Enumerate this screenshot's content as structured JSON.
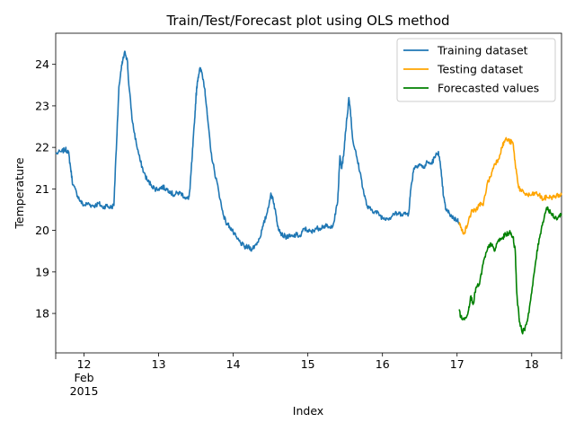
{
  "chart_data": {
    "type": "line",
    "title": "Train/Test/Forecast plot using OLS method",
    "xlabel": "Index",
    "ylabel": "Temperature",
    "x_unit": "day of Feb 2015 (fractional)",
    "xlim": [
      11.62,
      18.4
    ],
    "ylim": [
      17.05,
      24.75
    ],
    "x_ticks": [
      {
        "value": 12,
        "lines": [
          "12",
          "Feb",
          "2015"
        ]
      },
      {
        "value": 13,
        "lines": [
          "13"
        ]
      },
      {
        "value": 14,
        "lines": [
          "14"
        ]
      },
      {
        "value": 15,
        "lines": [
          "15"
        ]
      },
      {
        "value": 16,
        "lines": [
          "16"
        ]
      },
      {
        "value": 17,
        "lines": [
          "17"
        ]
      },
      {
        "value": 18,
        "lines": [
          "18"
        ]
      }
    ],
    "y_ticks": [
      18,
      19,
      20,
      21,
      22,
      23,
      24
    ],
    "grid": false,
    "legend_position": "top-right",
    "series": [
      {
        "name": "Training dataset",
        "color": "#1f77b4",
        "points": [
          [
            11.62,
            21.85
          ],
          [
            11.7,
            21.9
          ],
          [
            11.75,
            21.95
          ],
          [
            11.79,
            21.9
          ],
          [
            11.82,
            21.5
          ],
          [
            11.85,
            21.1
          ],
          [
            11.9,
            20.9
          ],
          [
            11.95,
            20.7
          ],
          [
            12.0,
            20.6
          ],
          [
            12.05,
            20.65
          ],
          [
            12.1,
            20.6
          ],
          [
            12.15,
            20.6
          ],
          [
            12.2,
            20.65
          ],
          [
            12.25,
            20.55
          ],
          [
            12.3,
            20.6
          ],
          [
            12.35,
            20.55
          ],
          [
            12.4,
            20.6
          ],
          [
            12.42,
            21.5
          ],
          [
            12.45,
            22.7
          ],
          [
            12.47,
            23.5
          ],
          [
            12.5,
            23.9
          ],
          [
            12.52,
            24.1
          ],
          [
            12.55,
            24.3
          ],
          [
            12.58,
            24.1
          ],
          [
            12.6,
            23.5
          ],
          [
            12.65,
            22.6
          ],
          [
            12.7,
            22.1
          ],
          [
            12.75,
            21.7
          ],
          [
            12.8,
            21.4
          ],
          [
            12.85,
            21.2
          ],
          [
            12.9,
            21.1
          ],
          [
            12.95,
            21.0
          ],
          [
            13.0,
            21.0
          ],
          [
            13.05,
            21.05
          ],
          [
            13.1,
            21.0
          ],
          [
            13.15,
            20.95
          ],
          [
            13.2,
            20.85
          ],
          [
            13.25,
            20.9
          ],
          [
            13.3,
            20.9
          ],
          [
            13.35,
            20.8
          ],
          [
            13.4,
            20.75
          ],
          [
            13.42,
            21.0
          ],
          [
            13.45,
            21.8
          ],
          [
            13.48,
            22.6
          ],
          [
            13.5,
            23.2
          ],
          [
            13.52,
            23.6
          ],
          [
            13.55,
            23.9
          ],
          [
            13.58,
            23.8
          ],
          [
            13.62,
            23.4
          ],
          [
            13.65,
            22.8
          ],
          [
            13.7,
            21.9
          ],
          [
            13.75,
            21.4
          ],
          [
            13.8,
            21.0
          ],
          [
            13.85,
            20.5
          ],
          [
            13.9,
            20.2
          ],
          [
            13.95,
            20.1
          ],
          [
            14.0,
            19.95
          ],
          [
            14.05,
            19.8
          ],
          [
            14.1,
            19.7
          ],
          [
            14.15,
            19.6
          ],
          [
            14.2,
            19.6
          ],
          [
            14.25,
            19.55
          ],
          [
            14.3,
            19.65
          ],
          [
            14.35,
            19.8
          ],
          [
            14.4,
            20.1
          ],
          [
            14.45,
            20.4
          ],
          [
            14.5,
            20.85
          ],
          [
            14.53,
            20.8
          ],
          [
            14.57,
            20.4
          ],
          [
            14.6,
            20.1
          ],
          [
            14.65,
            19.9
          ],
          [
            14.7,
            19.85
          ],
          [
            14.75,
            19.85
          ],
          [
            14.8,
            19.85
          ],
          [
            14.85,
            19.9
          ],
          [
            14.9,
            19.85
          ],
          [
            14.95,
            20.05
          ],
          [
            15.0,
            20.0
          ],
          [
            15.05,
            19.95
          ],
          [
            15.1,
            20.05
          ],
          [
            15.15,
            20.05
          ],
          [
            15.2,
            20.1
          ],
          [
            15.25,
            20.1
          ],
          [
            15.3,
            20.05
          ],
          [
            15.35,
            20.2
          ],
          [
            15.4,
            20.7
          ],
          [
            15.43,
            21.8
          ],
          [
            15.45,
            21.5
          ],
          [
            15.48,
            21.8
          ],
          [
            15.5,
            22.3
          ],
          [
            15.53,
            22.8
          ],
          [
            15.55,
            23.2
          ],
          [
            15.57,
            22.9
          ],
          [
            15.6,
            22.2
          ],
          [
            15.65,
            21.8
          ],
          [
            15.7,
            21.4
          ],
          [
            15.75,
            20.9
          ],
          [
            15.8,
            20.55
          ],
          [
            15.85,
            20.5
          ],
          [
            15.9,
            20.45
          ],
          [
            15.95,
            20.4
          ],
          [
            16.0,
            20.3
          ],
          [
            16.05,
            20.3
          ],
          [
            16.1,
            20.3
          ],
          [
            16.15,
            20.4
          ],
          [
            16.2,
            20.4
          ],
          [
            16.25,
            20.4
          ],
          [
            16.3,
            20.4
          ],
          [
            16.35,
            20.4
          ],
          [
            16.38,
            21.0
          ],
          [
            16.42,
            21.5
          ],
          [
            16.45,
            21.55
          ],
          [
            16.5,
            21.6
          ],
          [
            16.55,
            21.5
          ],
          [
            16.6,
            21.65
          ],
          [
            16.65,
            21.6
          ],
          [
            16.7,
            21.75
          ],
          [
            16.75,
            21.9
          ],
          [
            16.78,
            21.5
          ],
          [
            16.82,
            20.8
          ],
          [
            16.85,
            20.5
          ],
          [
            16.9,
            20.4
          ],
          [
            16.95,
            20.3
          ],
          [
            17.0,
            20.25
          ],
          [
            17.03,
            20.2
          ]
        ]
      },
      {
        "name": "Testing dataset",
        "color": "#ffa500",
        "points": [
          [
            17.03,
            20.2
          ],
          [
            17.06,
            20.0
          ],
          [
            17.1,
            19.95
          ],
          [
            17.15,
            20.2
          ],
          [
            17.2,
            20.5
          ],
          [
            17.25,
            20.45
          ],
          [
            17.3,
            20.65
          ],
          [
            17.35,
            20.6
          ],
          [
            17.4,
            21.1
          ],
          [
            17.45,
            21.3
          ],
          [
            17.5,
            21.6
          ],
          [
            17.55,
            21.7
          ],
          [
            17.6,
            22.0
          ],
          [
            17.65,
            22.2
          ],
          [
            17.7,
            22.15
          ],
          [
            17.75,
            22.1
          ],
          [
            17.78,
            21.6
          ],
          [
            17.82,
            21.1
          ],
          [
            17.85,
            20.95
          ],
          [
            17.9,
            20.9
          ],
          [
            17.95,
            20.85
          ],
          [
            18.0,
            20.85
          ],
          [
            18.05,
            20.9
          ],
          [
            18.1,
            20.85
          ],
          [
            18.15,
            20.75
          ],
          [
            18.2,
            20.8
          ],
          [
            18.25,
            20.8
          ],
          [
            18.3,
            20.8
          ],
          [
            18.35,
            20.85
          ],
          [
            18.4,
            20.85
          ]
        ]
      },
      {
        "name": "Forecasted values",
        "color": "#008000",
        "points": [
          [
            17.03,
            18.1
          ],
          [
            17.05,
            17.9
          ],
          [
            17.1,
            17.85
          ],
          [
            17.15,
            18.05
          ],
          [
            17.18,
            18.4
          ],
          [
            17.22,
            18.25
          ],
          [
            17.25,
            18.6
          ],
          [
            17.3,
            18.7
          ],
          [
            17.35,
            19.2
          ],
          [
            17.4,
            19.5
          ],
          [
            17.45,
            19.7
          ],
          [
            17.5,
            19.5
          ],
          [
            17.55,
            19.75
          ],
          [
            17.6,
            19.8
          ],
          [
            17.65,
            19.9
          ],
          [
            17.7,
            19.95
          ],
          [
            17.75,
            19.85
          ],
          [
            17.78,
            19.5
          ],
          [
            17.8,
            18.5
          ],
          [
            17.83,
            17.9
          ],
          [
            17.87,
            17.55
          ],
          [
            17.9,
            17.6
          ],
          [
            17.95,
            17.9
          ],
          [
            18.0,
            18.5
          ],
          [
            18.05,
            19.2
          ],
          [
            18.1,
            19.8
          ],
          [
            18.15,
            20.2
          ],
          [
            18.2,
            20.55
          ],
          [
            18.25,
            20.45
          ],
          [
            18.3,
            20.3
          ],
          [
            18.35,
            20.3
          ],
          [
            18.4,
            20.4
          ]
        ]
      }
    ]
  }
}
